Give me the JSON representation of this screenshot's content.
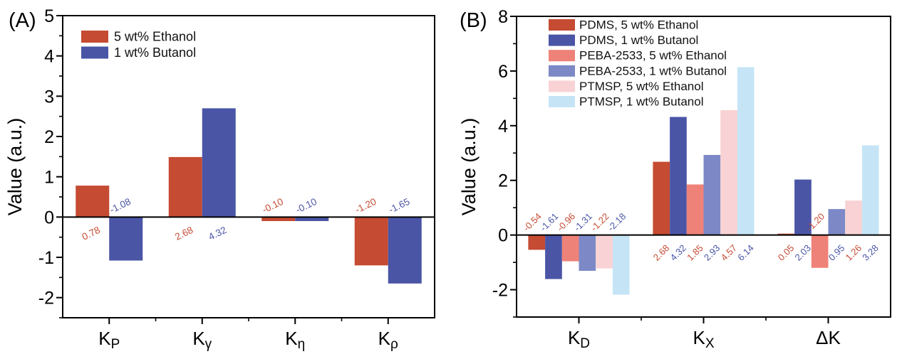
{
  "figure": {
    "background": "#ffffff",
    "panel_a_label": "(A)",
    "panel_b_label": "(B)"
  },
  "chart_data": [
    {
      "type": "bar",
      "panel_label": "(A)",
      "title": "",
      "xlabel": "",
      "ylabel": "Value (a.u.)",
      "ylim": [
        -2.5,
        5
      ],
      "yticks": [
        -2,
        -1,
        0,
        1,
        2,
        3,
        4,
        5
      ],
      "yminor_step": 0.5,
      "grid": false,
      "legend_position": "top-left-inside",
      "categories": [
        {
          "main": "K",
          "sub": "P"
        },
        {
          "main": "K",
          "sub": "γ"
        },
        {
          "main": "K",
          "sub": "η"
        },
        {
          "main": "K",
          "sub": "ρ"
        }
      ],
      "series": [
        {
          "name": "5 wt% Ethanol",
          "color": "#C54B33",
          "label_color": "#C54B33",
          "values": [
            0.78,
            2.68,
            -0.1,
            -1.2
          ],
          "drawn": [
            0.78,
            1.49,
            -0.1,
            -1.2
          ],
          "labels": [
            "0.78",
            "2.68",
            "-0.10",
            "-1.20"
          ]
        },
        {
          "name": "1 wt% Butanol",
          "color": "#4A55A6",
          "label_color": "#4A55A6",
          "values": [
            -1.08,
            4.32,
            -0.1,
            -1.65
          ],
          "drawn": [
            -1.08,
            2.7,
            -0.1,
            -1.65
          ],
          "labels": [
            "-1.08",
            "4.32",
            "-0.10",
            "-1.65"
          ]
        }
      ]
    },
    {
      "type": "bar",
      "panel_label": "(B)",
      "title": "",
      "xlabel": "",
      "ylabel": "Value (a.u.)",
      "ylim": [
        -3,
        8
      ],
      "yticks": [
        -2,
        0,
        2,
        4,
        6,
        8
      ],
      "yminor_step": 1,
      "grid": false,
      "legend_position": "top-left-inside",
      "categories": [
        {
          "main": "K",
          "sub": "D"
        },
        {
          "main": "K",
          "sub": "X"
        },
        {
          "main": "ΔK",
          "sub": ""
        }
      ],
      "series": [
        {
          "name": "PDMS, 5 wt% Ethanol",
          "color": "#C54B33",
          "label_color": "#C54B33",
          "values": [
            -0.54,
            2.68,
            0.05
          ],
          "labels": [
            "-0.54",
            "2.68",
            "0.05"
          ]
        },
        {
          "name": "PDMS, 1 wt% Butanol",
          "color": "#4A55A6",
          "label_color": "#4A55A6",
          "values": [
            -1.61,
            4.32,
            2.03
          ],
          "labels": [
            "-1.61",
            "4.32",
            "2.03"
          ]
        },
        {
          "name": "PEBA-2533, 5 wt% Ethanol",
          "color": "#EE8278",
          "label_color": "#C54B33",
          "values": [
            -0.96,
            1.85,
            -1.2
          ],
          "labels": [
            "-0.96",
            "1.85",
            "-1.20"
          ]
        },
        {
          "name": "PEBA-2533, 1 wt% Butanol",
          "color": "#7C89C6",
          "label_color": "#4A55A6",
          "values": [
            -1.31,
            2.93,
            0.95
          ],
          "labels": [
            "-1.31",
            "2.93",
            "0.95"
          ]
        },
        {
          "name": "PTMSP, 5 wt% Ethanol",
          "color": "#F8D2D4",
          "label_color": "#C54B33",
          "values": [
            -1.22,
            4.57,
            1.26
          ],
          "labels": [
            "-1.22",
            "4.57",
            "1.26"
          ]
        },
        {
          "name": "PTMSP, 1 wt% Butanol",
          "color": "#C5E5F6",
          "label_color": "#4A55A6",
          "values": [
            -2.18,
            6.14,
            3.28
          ],
          "labels": [
            "-2.18",
            "6.14",
            "3.28"
          ]
        }
      ]
    }
  ]
}
